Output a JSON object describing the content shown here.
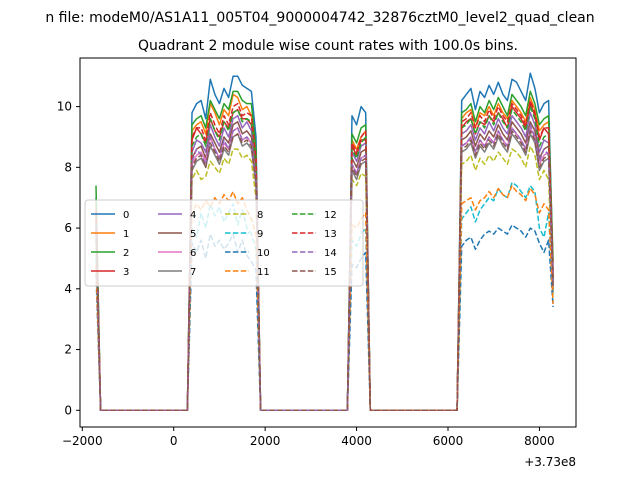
{
  "suptitle": "n file: modeM0/AS1A11_005T04_9000004742_32876cztM0_level2_quad_clean",
  "chart_data": {
    "type": "line",
    "title": "Quadrant 2 module wise count rates with 100.0s bins.",
    "xlabel": "",
    "ylabel": "",
    "x_offset_label": "+3.73e8",
    "xlim": [
      -2050,
      8800
    ],
    "ylim": [
      -0.55,
      11.6
    ],
    "xticks": [
      -2000,
      0,
      2000,
      4000,
      6000,
      8000
    ],
    "xtick_labels": [
      "−2000",
      "0",
      "2000",
      "4000",
      "6000",
      "8000"
    ],
    "yticks": [
      0,
      2,
      4,
      6,
      8,
      10
    ],
    "ytick_labels": [
      "0",
      "2",
      "4",
      "6",
      "8",
      "10"
    ],
    "grid": false,
    "legend": {
      "placement": "center-left",
      "columns": 4
    },
    "segments": [
      {
        "x_start": -1700,
        "x_end": -1600,
        "ramp_down": true
      },
      {
        "x_start": 400,
        "x_end": 1800
      },
      {
        "x_start": 3900,
        "x_end": 4200
      },
      {
        "x_start": 6300,
        "x_end": 8300
      }
    ],
    "x": [
      -1700,
      -1600,
      -1500,
      -1400,
      -1300,
      -1200,
      -1100,
      -1000,
      -900,
      -800,
      -700,
      -600,
      -500,
      -400,
      -300,
      -200,
      -100,
      0,
      100,
      200,
      300,
      400,
      500,
      600,
      700,
      800,
      900,
      1000,
      1100,
      1200,
      1300,
      1400,
      1500,
      1600,
      1700,
      1800,
      1900,
      2000,
      2100,
      2200,
      2300,
      2400,
      2500,
      2600,
      2700,
      2800,
      2900,
      3000,
      3100,
      3200,
      3300,
      3400,
      3500,
      3600,
      3700,
      3800,
      3900,
      4000,
      4100,
      4200,
      4300,
      4400,
      4500,
      4600,
      4700,
      4800,
      4900,
      5000,
      5100,
      5200,
      5300,
      5400,
      5500,
      5600,
      5700,
      5800,
      5900,
      6000,
      6100,
      6200,
      6300,
      6400,
      6500,
      6600,
      6700,
      6800,
      6900,
      7000,
      7100,
      7200,
      7300,
      7400,
      7500,
      7600,
      7700,
      7800,
      7900,
      8000,
      8100,
      8200,
      8300
    ],
    "series": [
      {
        "name": "0",
        "color": "#1f77b4",
        "dash": "solid",
        "start": 7.0,
        "end": 4.6,
        "levels": [
          9.8,
          10.1,
          10.2,
          9.6,
          10.9,
          10.4,
          10.1,
          10.6,
          10.3,
          11.0,
          11.0,
          10.7,
          10.6,
          10.5,
          9.0,
          9.7,
          9.4,
          10.0,
          9.8,
          10.2,
          10.4,
          10.6,
          9.9,
          10.5,
          10.3,
          10.7,
          10.4,
          10.8,
          10.4,
          10.2,
          10.9,
          10.8,
          10.5,
          10.2,
          11.1,
          10.6
        ]
      },
      {
        "name": "1",
        "color": "#ff7f0e",
        "dash": "solid",
        "start": 6.8,
        "end": 4.4,
        "levels": [
          9.2,
          9.4,
          9.5,
          9.1,
          10.1,
          9.8,
          9.4,
          9.9,
          9.7,
          10.4,
          10.3,
          9.9,
          10.0,
          9.7,
          8.4,
          8.9,
          8.6,
          9.0,
          9.2,
          9.6,
          9.8,
          9.9,
          9.3,
          9.8,
          9.7,
          10.0,
          9.7,
          10.1,
          9.8,
          9.6,
          10.2,
          10.0,
          9.8,
          9.5,
          10.3,
          9.9
        ]
      },
      {
        "name": "2",
        "color": "#2ca02c",
        "dash": "solid",
        "start": 7.4,
        "end": 4.9,
        "levels": [
          9.4,
          9.6,
          9.7,
          9.3,
          10.2,
          9.9,
          9.6,
          10.1,
          9.9,
          10.5,
          10.5,
          10.2,
          10.1,
          10.1,
          8.6,
          9.1,
          8.8,
          9.3,
          9.4,
          9.8,
          9.9,
          10.1,
          9.5,
          10.0,
          9.8,
          10.2,
          9.9,
          10.3,
          10.0,
          9.7,
          10.4,
          10.2,
          10.0,
          9.7,
          10.5,
          10.1
        ]
      },
      {
        "name": "3",
        "color": "#d62728",
        "dash": "solid",
        "start": 6.5,
        "end": 4.3,
        "levels": [
          8.9,
          9.3,
          9.1,
          8.8,
          9.6,
          9.2,
          9.0,
          9.5,
          9.3,
          9.8,
          9.9,
          9.6,
          9.6,
          9.4,
          8.2,
          8.7,
          8.4,
          8.9,
          8.9,
          9.3,
          9.5,
          9.6,
          9.1,
          9.5,
          9.4,
          9.7,
          9.5,
          9.8,
          9.6,
          9.3,
          10.0,
          9.8,
          9.6,
          9.3,
          10.1,
          9.7
        ]
      },
      {
        "name": "4",
        "color": "#9467bd",
        "dash": "solid",
        "start": 6.3,
        "end": 4.2,
        "levels": [
          8.5,
          8.9,
          8.8,
          8.5,
          9.4,
          9.0,
          8.7,
          9.3,
          9.0,
          9.6,
          9.7,
          9.3,
          9.5,
          9.2,
          8.0,
          8.5,
          8.2,
          8.7,
          8.8,
          9.1,
          9.2,
          9.4,
          8.9,
          9.3,
          9.1,
          9.5,
          9.2,
          9.6,
          9.3,
          9.1,
          9.7,
          9.5,
          9.3,
          9.0,
          9.8,
          9.4
        ]
      },
      {
        "name": "5",
        "color": "#8c564b",
        "dash": "solid",
        "start": 6.2,
        "end": 4.1,
        "levels": [
          8.3,
          8.6,
          8.7,
          8.3,
          9.1,
          8.8,
          8.5,
          9.0,
          8.8,
          9.4,
          9.5,
          9.1,
          9.2,
          9.0,
          7.8,
          8.3,
          8.0,
          8.5,
          8.6,
          8.9,
          9.0,
          9.2,
          8.7,
          9.1,
          8.9,
          9.2,
          9.0,
          9.4,
          9.1,
          8.9,
          9.5,
          9.3,
          9.1,
          8.8,
          9.5,
          9.2
        ]
      },
      {
        "name": "6",
        "color": "#e377c2",
        "dash": "solid",
        "start": 6.0,
        "end": 4.0,
        "levels": [
          8.1,
          8.4,
          8.5,
          8.2,
          9.0,
          8.6,
          8.3,
          8.8,
          8.6,
          9.2,
          9.3,
          8.9,
          9.0,
          8.8,
          7.6,
          8.1,
          7.8,
          8.3,
          8.4,
          8.7,
          8.8,
          9.0,
          8.5,
          8.9,
          8.7,
          9.0,
          8.8,
          9.2,
          8.9,
          8.7,
          9.3,
          9.1,
          8.9,
          8.6,
          9.3,
          9.0
        ]
      },
      {
        "name": "7",
        "color": "#7f7f7f",
        "dash": "solid",
        "start": 5.8,
        "end": 3.9,
        "levels": [
          7.9,
          8.2,
          8.3,
          8.0,
          8.7,
          8.4,
          8.1,
          8.6,
          8.4,
          9.0,
          9.1,
          8.7,
          8.8,
          8.6,
          7.4,
          7.9,
          7.6,
          8.1,
          8.2,
          8.5,
          8.6,
          8.8,
          8.3,
          8.7,
          8.5,
          8.8,
          8.6,
          9.0,
          8.7,
          8.5,
          9.1,
          8.9,
          8.7,
          8.4,
          9.1,
          8.8
        ]
      },
      {
        "name": "8",
        "color": "#bcbd22",
        "dash": "dashed",
        "start": 5.6,
        "end": 3.8,
        "levels": [
          7.6,
          7.9,
          7.6,
          7.7,
          8.2,
          8.0,
          7.8,
          8.3,
          8.1,
          8.6,
          8.6,
          8.3,
          8.4,
          8.2,
          7.0,
          7.6,
          7.4,
          7.8,
          7.7,
          8.1,
          8.2,
          8.4,
          7.9,
          8.3,
          8.1,
          8.4,
          8.2,
          8.5,
          8.3,
          8.1,
          8.6,
          8.5,
          8.3,
          8.0,
          8.7,
          8.4
        ]
      },
      {
        "name": "9",
        "color": "#17becf",
        "dash": "dashed",
        "start": 5.0,
        "end": 3.6,
        "levels": [
          6.0,
          5.7,
          6.5,
          6.0,
          6.8,
          6.4,
          6.7,
          6.2,
          6.5,
          6.8,
          6.1,
          6.6,
          6.0,
          5.8,
          5.3,
          5.6,
          5.4,
          5.8,
          6.0,
          6.3,
          6.5,
          6.7,
          6.2,
          6.6,
          6.8,
          7.0,
          6.9,
          7.3,
          7.1,
          7.0,
          7.5,
          7.4,
          7.2,
          7.0,
          7.4,
          7.2
        ]
      },
      {
        "name": "10",
        "color": "#1f77b4",
        "dash": "dashed",
        "start": 4.5,
        "end": 3.4,
        "levels": [
          5.5,
          5.2,
          5.6,
          5.0,
          5.8,
          5.4,
          5.6,
          5.3,
          5.5,
          5.8,
          5.2,
          5.6,
          5.1,
          4.9,
          4.6,
          4.8,
          4.7,
          5.0,
          5.2,
          5.4,
          5.6,
          5.7,
          5.3,
          5.6,
          5.8,
          5.9,
          5.8,
          6.0,
          5.9,
          5.8,
          6.1,
          6.0,
          5.9,
          5.7,
          6.0,
          5.9
        ]
      },
      {
        "name": "11",
        "color": "#ff7f0e",
        "dash": "dashed",
        "start": 4.8,
        "end": 3.5,
        "levels": [
          6.5,
          6.8,
          6.6,
          6.9,
          6.7,
          7.0,
          6.8,
          7.1,
          6.9,
          7.2,
          6.8,
          7.0,
          6.6,
          6.3,
          5.8,
          6.1,
          6.0,
          6.3,
          6.5,
          6.8,
          6.9,
          7.0,
          6.6,
          6.9,
          7.0,
          7.2,
          7.0,
          7.3,
          7.1,
          7.0,
          7.4,
          7.2,
          7.1,
          6.9,
          7.3,
          7.1
        ]
      },
      {
        "name": "12",
        "color": "#2ca02c",
        "dash": "dashed",
        "start": 6.4,
        "end": 4.3,
        "levels": [
          8.7,
          9.0,
          9.1,
          8.7,
          9.6,
          9.2,
          8.9,
          9.5,
          9.2,
          9.8,
          9.9,
          9.5,
          9.6,
          9.5,
          8.1,
          8.6,
          8.3,
          8.8,
          9.0,
          9.3,
          9.4,
          9.6,
          9.1,
          9.5,
          9.3,
          9.7,
          9.4,
          9.8,
          9.5,
          9.3,
          9.9,
          9.7,
          9.5,
          9.2,
          10.0,
          9.6
        ]
      },
      {
        "name": "13",
        "color": "#d62728",
        "dash": "dashed",
        "start": 6.6,
        "end": 4.4,
        "levels": [
          9.0,
          9.3,
          9.3,
          8.9,
          9.8,
          9.4,
          9.1,
          9.7,
          9.4,
          10.0,
          10.1,
          9.7,
          9.8,
          9.7,
          8.3,
          8.8,
          8.5,
          9.0,
          9.2,
          9.5,
          9.6,
          9.8,
          9.3,
          9.7,
          9.5,
          9.9,
          9.6,
          10.0,
          9.7,
          9.5,
          10.1,
          9.9,
          9.7,
          9.4,
          10.2,
          9.8
        ]
      },
      {
        "name": "14",
        "color": "#9467bd",
        "dash": "dashed",
        "start": 6.1,
        "end": 4.1,
        "levels": [
          8.2,
          8.6,
          8.4,
          8.1,
          9.0,
          8.6,
          8.3,
          8.9,
          8.6,
          9.2,
          9.3,
          8.9,
          9.0,
          8.8,
          7.6,
          8.1,
          7.8,
          8.3,
          8.4,
          8.7,
          8.8,
          9.0,
          8.5,
          8.9,
          8.7,
          9.0,
          8.8,
          9.2,
          8.9,
          8.7,
          9.3,
          9.1,
          8.9,
          8.6,
          9.4,
          9.0
        ]
      },
      {
        "name": "15",
        "color": "#8c564b",
        "dash": "dashed",
        "start": 5.9,
        "end": 4.0,
        "levels": [
          8.0,
          8.3,
          8.4,
          8.0,
          8.8,
          8.5,
          8.2,
          8.7,
          8.5,
          9.0,
          9.1,
          8.8,
          8.9,
          8.7,
          7.5,
          8.0,
          7.7,
          8.2,
          8.3,
          8.6,
          8.7,
          8.9,
          8.4,
          8.8,
          8.6,
          8.9,
          8.7,
          9.1,
          8.8,
          8.6,
          9.2,
          9.0,
          8.8,
          8.5,
          9.2,
          8.9
        ]
      }
    ]
  }
}
